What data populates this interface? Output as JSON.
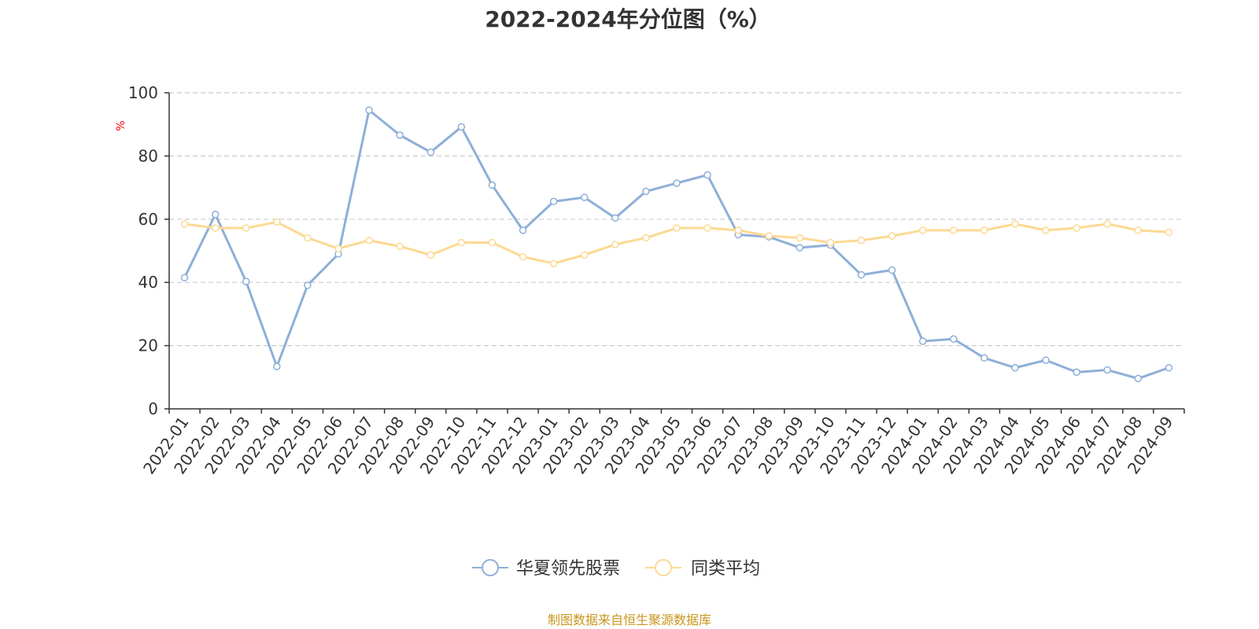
{
  "colors": {
    "series_1": "#8eafd8",
    "series_2": "#fcd993",
    "axis": "#333333",
    "grid": "#cccccc",
    "unit": "#ff0000",
    "source": "#c8961e",
    "title": "#333333"
  },
  "footer": {
    "source": "制图数据来自恒生聚源数据库"
  },
  "chart_data": {
    "type": "line",
    "title": "2022-2024年分位图（%）",
    "xlabel": "",
    "ylabel": "%",
    "ylim": [
      0,
      100
    ],
    "yticks": [
      0,
      20,
      40,
      60,
      80,
      100
    ],
    "grid": true,
    "legend_position": "bottom",
    "categories": [
      "2022-01",
      "2022-02",
      "2022-03",
      "2022-04",
      "2022-05",
      "2022-06",
      "2022-07",
      "2022-08",
      "2022-09",
      "2022-10",
      "2022-11",
      "2022-12",
      "2023-01",
      "2023-02",
      "2023-03",
      "2023-04",
      "2023-05",
      "2023-06",
      "2023-07",
      "2023-08",
      "2023-09",
      "2023-10",
      "2023-11",
      "2023-12",
      "2024-01",
      "2024-02",
      "2024-03",
      "2024-04",
      "2024-05",
      "2024-06",
      "2024-07",
      "2024-08",
      "2024-09"
    ],
    "series": [
      {
        "name": "华夏领先股票",
        "color": "#8eafd8",
        "values": [
          41.5,
          61.5,
          40.3,
          13.4,
          39.1,
          49.0,
          94.5,
          86.6,
          81.2,
          89.2,
          70.8,
          56.5,
          65.6,
          66.9,
          60.4,
          68.8,
          71.4,
          74.0,
          55.1,
          54.4,
          51.0,
          51.8,
          42.4,
          43.9,
          21.4,
          22.1,
          16.1,
          13.0,
          15.4,
          11.6,
          12.3,
          9.6,
          13.0
        ]
      },
      {
        "name": "同类平均",
        "color": "#fcd993",
        "values": [
          58.5,
          57.2,
          57.2,
          59.1,
          54.1,
          50.7,
          53.3,
          51.4,
          48.7,
          52.6,
          52.6,
          48.1,
          46.0,
          48.7,
          52.0,
          54.1,
          57.2,
          57.2,
          56.5,
          54.7,
          54.1,
          52.6,
          53.3,
          54.7,
          56.5,
          56.5,
          56.5,
          58.5,
          56.5,
          57.2,
          58.5,
          56.5,
          55.9
        ]
      }
    ]
  }
}
